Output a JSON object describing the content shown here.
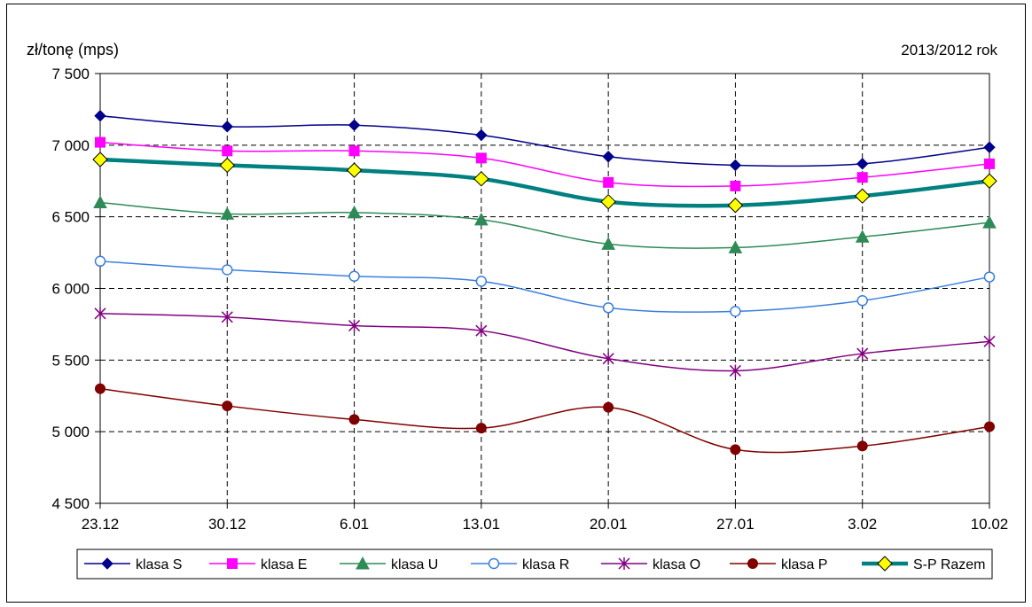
{
  "chart_data": {
    "type": "line",
    "ylabel": "zł/tonę (mps)",
    "period_label": "2013/2012 rok",
    "categories": [
      "23.12",
      "30.12",
      "6.01",
      "13.01",
      "20.01",
      "27.01",
      "3.02",
      "10.02"
    ],
    "ylim": [
      4500,
      7500
    ],
    "yticks": [
      4500,
      5000,
      5500,
      6000,
      6500,
      7000,
      7500
    ],
    "ytick_labels": [
      "4 500",
      "5 000",
      "5 500",
      "6 000",
      "6 500",
      "7 000",
      "7 500"
    ],
    "grid": "dashed",
    "legend_position": "bottom",
    "series": [
      {
        "name": "klasa S",
        "values": [
          7205,
          7130,
          7140,
          7070,
          6920,
          6860,
          6870,
          6985
        ],
        "color": "#00008B",
        "marker": "diamond",
        "width": 1.5
      },
      {
        "name": "klasa E",
        "values": [
          7020,
          6960,
          6960,
          6910,
          6740,
          6715,
          6775,
          6870
        ],
        "color": "#FF00FF",
        "marker": "square",
        "width": 1.5
      },
      {
        "name": "klasa U",
        "values": [
          6600,
          6520,
          6530,
          6480,
          6310,
          6285,
          6360,
          6460
        ],
        "color": "#2E8B57",
        "marker": "triangle",
        "width": 1.5
      },
      {
        "name": "klasa R",
        "values": [
          6190,
          6130,
          6085,
          6050,
          5865,
          5840,
          5915,
          6080
        ],
        "color": "#3A7FE0",
        "marker": "circle-open",
        "width": 1.5
      },
      {
        "name": "klasa O",
        "values": [
          5825,
          5800,
          5740,
          5705,
          5510,
          5425,
          5545,
          5630
        ],
        "color": "#800080",
        "marker": "asterisk",
        "width": 1.5
      },
      {
        "name": "klasa P",
        "values": [
          5300,
          5180,
          5085,
          5025,
          5170,
          4875,
          4900,
          5035
        ],
        "color": "#800000",
        "marker": "circle",
        "width": 1.5
      },
      {
        "name": "S-P Razem",
        "values": [
          6900,
          6860,
          6825,
          6765,
          6605,
          6580,
          6645,
          6750
        ],
        "color": "#008080",
        "marker": "diamond-yellow",
        "width": 4.5
      }
    ]
  }
}
